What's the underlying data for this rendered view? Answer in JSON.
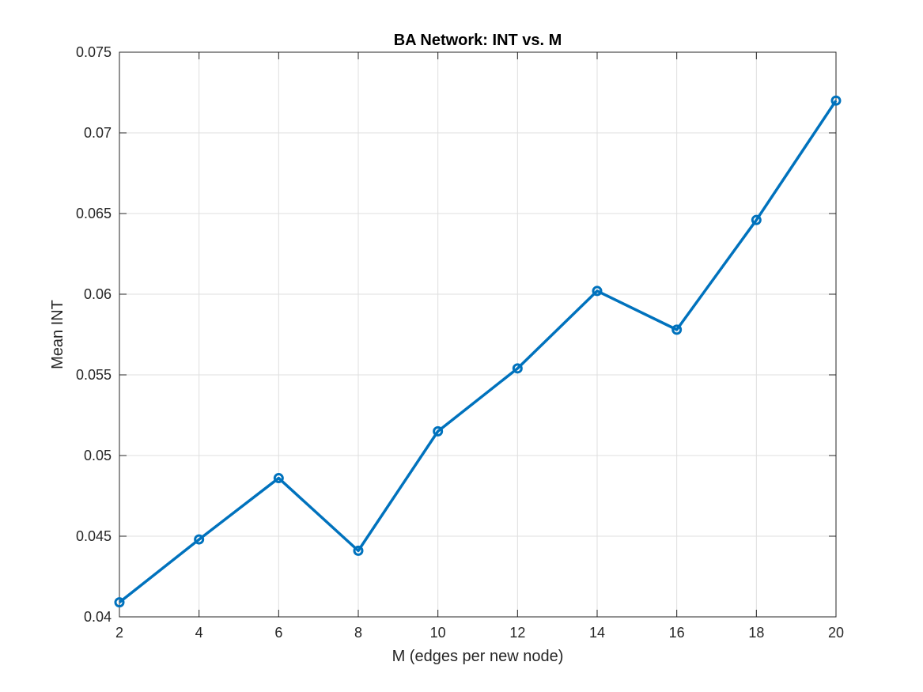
{
  "chart_data": {
    "type": "line",
    "title": "BA Network: INT vs. M",
    "xlabel": "M (edges per new node)",
    "ylabel": "Mean INT",
    "xlim": [
      2,
      20
    ],
    "ylim": [
      0.04,
      0.075
    ],
    "xticks": [
      2,
      4,
      6,
      8,
      10,
      12,
      14,
      16,
      18,
      20
    ],
    "xtick_labels": [
      "2",
      "4",
      "6",
      "8",
      "10",
      "12",
      "14",
      "16",
      "18",
      "20"
    ],
    "yticks": [
      0.04,
      0.045,
      0.05,
      0.055,
      0.06,
      0.065,
      0.07,
      0.075
    ],
    "ytick_labels": [
      "0.04",
      "0.045",
      "0.05",
      "0.055",
      "0.06",
      "0.065",
      "0.07",
      "0.075"
    ],
    "grid": true,
    "marker": "circle",
    "color": "#0072BD",
    "series": [
      {
        "x": [
          2,
          4,
          6,
          8,
          10,
          12,
          14,
          16,
          18,
          20
        ],
        "y": [
          0.0409,
          0.0448,
          0.0486,
          0.0441,
          0.0515,
          0.0554,
          0.0602,
          0.0578,
          0.0646,
          0.072
        ]
      }
    ]
  }
}
